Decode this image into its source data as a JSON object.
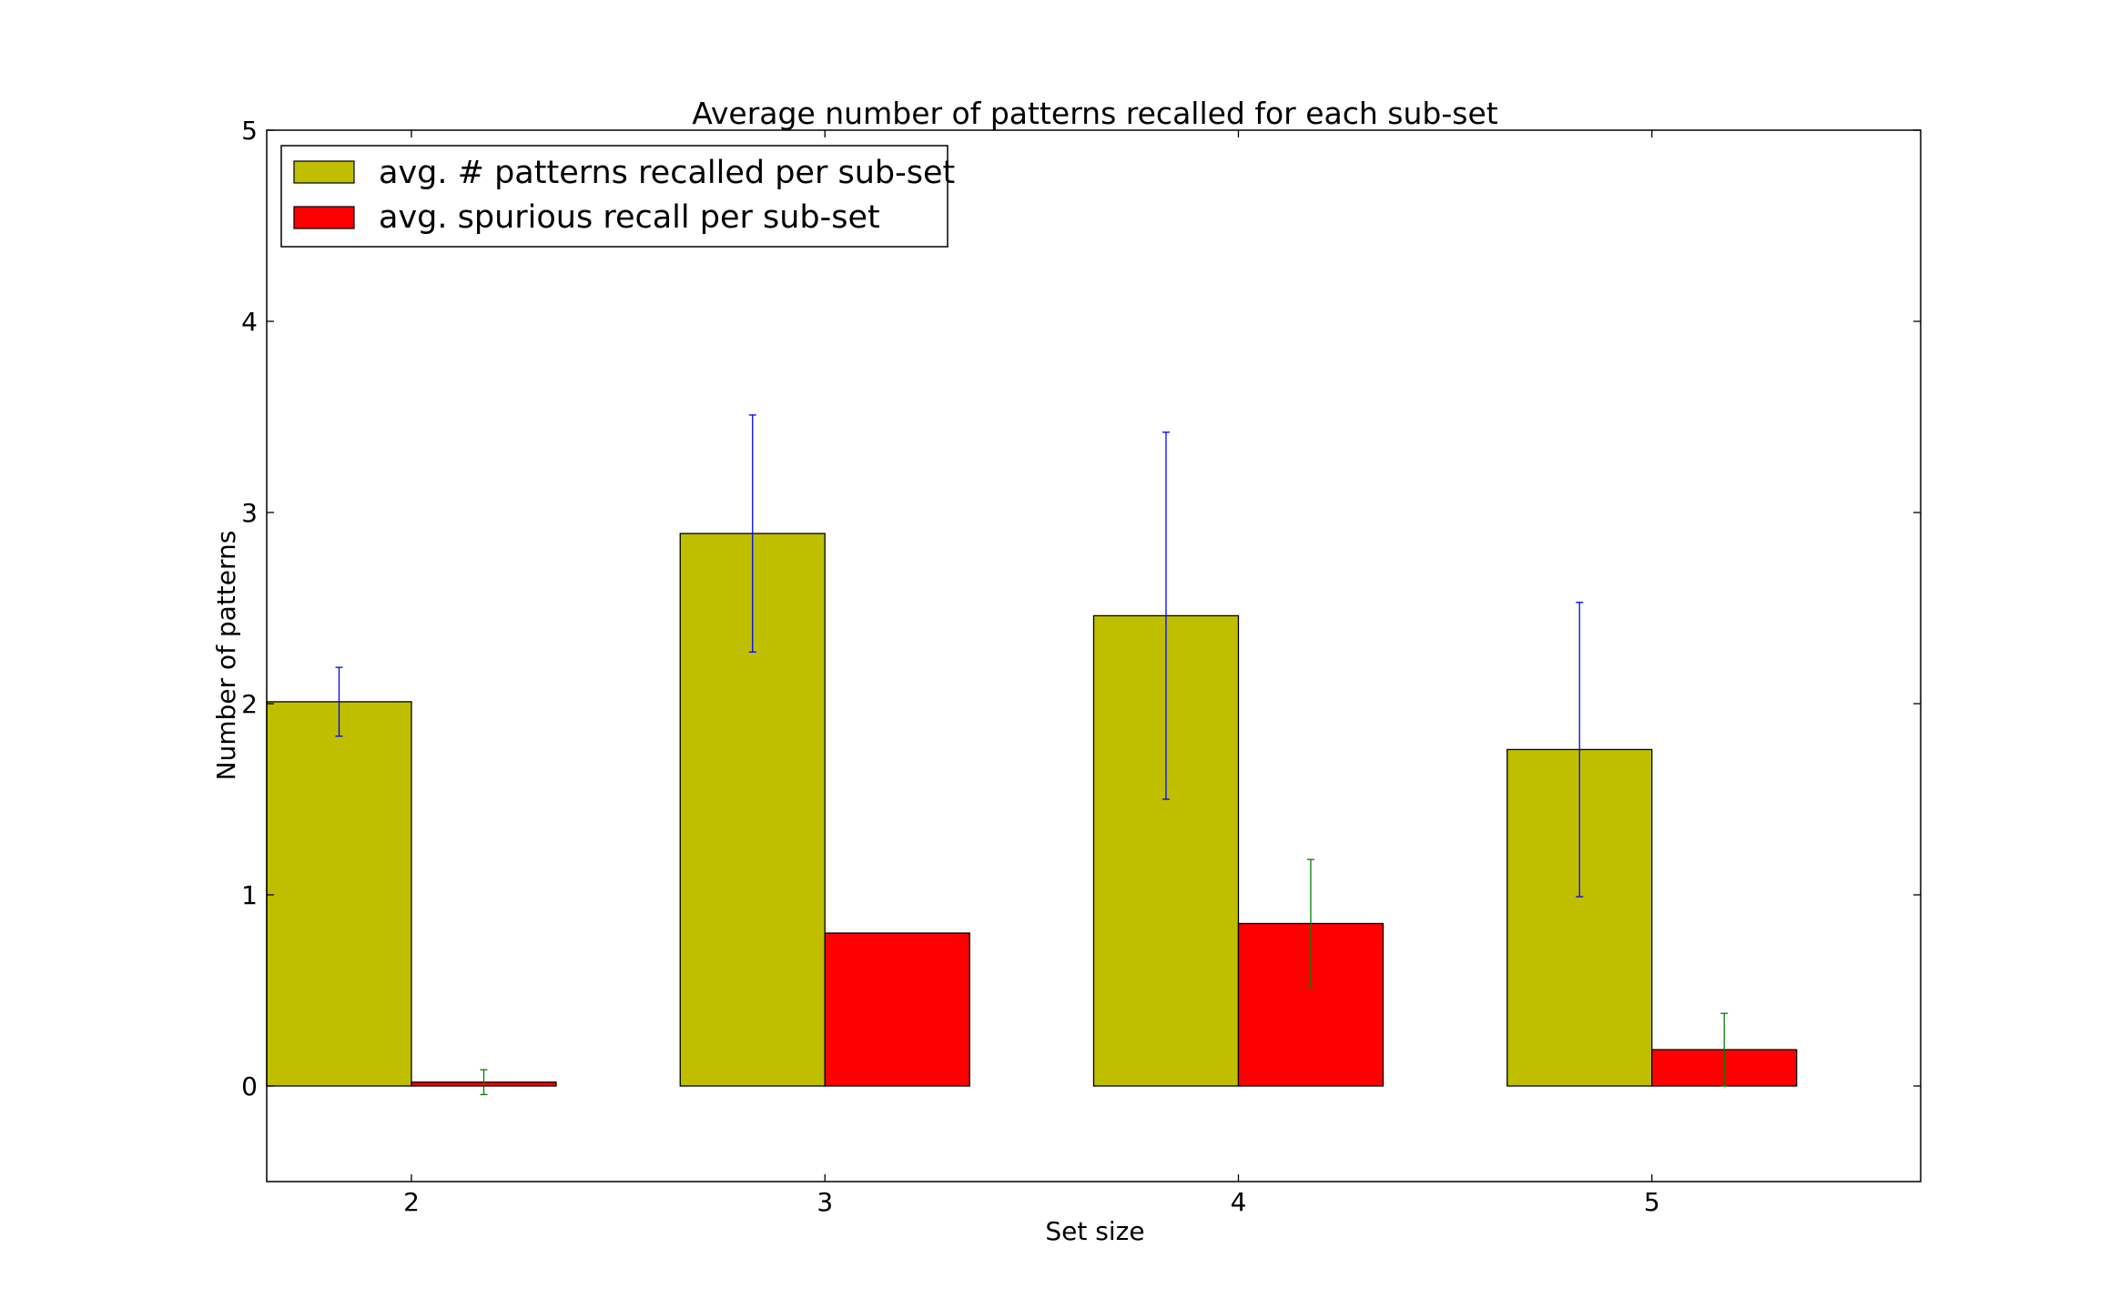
{
  "chart_data": {
    "type": "bar",
    "title": "Average number of patterns recalled for each sub-set",
    "xlabel": "Set size",
    "ylabel": "Number of patterns",
    "categories": [
      "2",
      "3",
      "4",
      "5"
    ],
    "ylim": [
      -0.5,
      5
    ],
    "yticks": [
      "0",
      "1",
      "2",
      "3",
      "4",
      "5"
    ],
    "grid": false,
    "legend_position": "top-left",
    "series": [
      {
        "name": "avg. # patterns recalled per sub-set",
        "color": "#bfbf00",
        "values": [
          2.01,
          2.89,
          2.46,
          1.76
        ],
        "errors": [
          0.18,
          0.62,
          0.96,
          0.77
        ],
        "error_color": "#0000ff"
      },
      {
        "name": "avg. spurious recall per sub-set",
        "color": "#ff0000",
        "values": [
          0.02,
          0.8,
          0.85,
          0.19
        ],
        "errors": [
          0.065,
          0.0,
          0.335,
          0.19
        ],
        "error_color": "#008000"
      }
    ]
  }
}
